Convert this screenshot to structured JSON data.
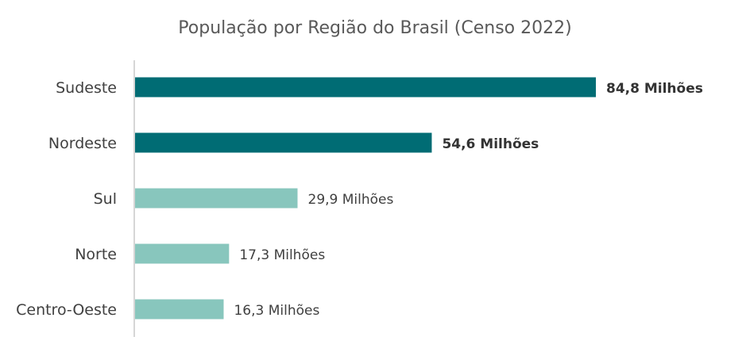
{
  "chart_data": {
    "type": "bar",
    "orientation": "horizontal",
    "title": "População por Região do Brasil (Censo 2022)",
    "unit": "Milhões",
    "categories": [
      "Sudeste",
      "Nordeste",
      "Sul",
      "Norte",
      "Centro-Oeste"
    ],
    "values": [
      84.8,
      54.6,
      29.9,
      17.3,
      16.3
    ],
    "value_labels": [
      "84,8 Milhões",
      "54,6 Milhões",
      "29,9 Milhões",
      "17,3 Milhões",
      "16,3 Milhões"
    ],
    "highlighted": [
      true,
      true,
      false,
      false,
      false
    ],
    "xlim": [
      0,
      84.8
    ],
    "grid": false,
    "legend": "none",
    "colors": {
      "highlight": "#006c74",
      "normal": "#88c6bd",
      "axis": "#c8c8c8"
    }
  }
}
